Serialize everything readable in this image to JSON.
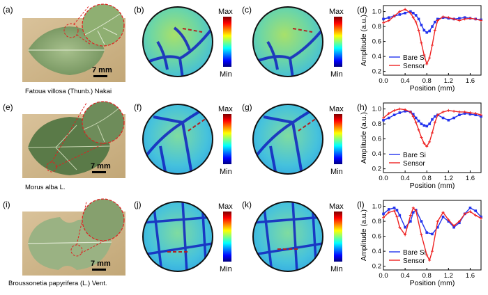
{
  "figure": {
    "rows": [
      {
        "photo": {
          "label": "(a)",
          "scale": "7 mm",
          "caption": "Fatoua villosa (Thunb.) Nakai"
        },
        "maps": [
          {
            "label": "(b)"
          },
          {
            "label": "(c)"
          }
        ],
        "plot": {
          "label": "(d)"
        }
      },
      {
        "photo": {
          "label": "(e)",
          "scale": "7 mm",
          "caption": "Morus alba L."
        },
        "maps": [
          {
            "label": "(f)"
          },
          {
            "label": "(g)"
          }
        ],
        "plot": {
          "label": "(h)"
        }
      },
      {
        "photo": {
          "label": "(i)",
          "scale": "7 mm",
          "caption": "Broussonetia papyrifera (L.) Vent."
        },
        "maps": [
          {
            "label": "(j)"
          },
          {
            "label": "(k)"
          }
        ],
        "plot": {
          "label": "(l)"
        }
      }
    ],
    "colorbar": {
      "max_label": "Max",
      "min_label": "Min"
    },
    "colors": {
      "bare_si": "#2233ee",
      "sensor": "#ee2222",
      "dashline": "#b02222"
    }
  },
  "chart_data": [
    {
      "type": "line",
      "xlabel": "Position (mm)",
      "ylabel": "Amplitude (a.u.)",
      "xlim": [
        0.0,
        1.8
      ],
      "ylim": [
        0.15,
        1.08
      ],
      "xticks": [
        "0.0",
        "0.4",
        "0.8",
        "1.2",
        "1.6"
      ],
      "yticks": [
        "0.2",
        "0.4",
        "0.6",
        "0.8",
        "1.0"
      ],
      "legend": "bottom-left",
      "series": [
        {
          "name": "Bare Si",
          "x": [
            0.0,
            0.1,
            0.2,
            0.3,
            0.4,
            0.5,
            0.55,
            0.6,
            0.65,
            0.7,
            0.75,
            0.8,
            0.85,
            0.9,
            0.95,
            1.0,
            1.1,
            1.2,
            1.3,
            1.4,
            1.5,
            1.6,
            1.7,
            1.8
          ],
          "y": [
            0.9,
            0.92,
            0.94,
            0.96,
            0.98,
            1.0,
            0.98,
            0.95,
            0.9,
            0.82,
            0.75,
            0.72,
            0.74,
            0.8,
            0.86,
            0.9,
            0.92,
            0.91,
            0.9,
            0.91,
            0.92,
            0.91,
            0.9,
            0.89
          ]
        },
        {
          "name": "Sensor",
          "x": [
            0.0,
            0.1,
            0.2,
            0.3,
            0.4,
            0.5,
            0.55,
            0.6,
            0.65,
            0.7,
            0.75,
            0.8,
            0.85,
            0.9,
            0.95,
            1.0,
            1.1,
            1.2,
            1.3,
            1.4,
            1.5,
            1.6,
            1.7,
            1.8
          ],
          "y": [
            0.85,
            0.88,
            0.94,
            1.0,
            1.03,
            0.98,
            0.92,
            0.86,
            0.75,
            0.58,
            0.42,
            0.3,
            0.38,
            0.55,
            0.75,
            0.88,
            0.93,
            0.92,
            0.9,
            0.88,
            0.9,
            0.91,
            0.9,
            0.88
          ]
        }
      ]
    },
    {
      "type": "line",
      "xlabel": "Position (mm)",
      "ylabel": "Amplitude (a.u.)",
      "xlim": [
        0.0,
        1.8
      ],
      "ylim": [
        0.15,
        1.08
      ],
      "xticks": [
        "0.0",
        "0.4",
        "0.8",
        "1.2",
        "1.6"
      ],
      "yticks": [
        "0.2",
        "0.4",
        "0.6",
        "0.8",
        "1.0"
      ],
      "legend": "bottom-left",
      "series": [
        {
          "name": "Bare Si",
          "x": [
            0.0,
            0.1,
            0.2,
            0.3,
            0.4,
            0.5,
            0.55,
            0.6,
            0.65,
            0.7,
            0.75,
            0.8,
            0.85,
            0.9,
            0.95,
            1.0,
            1.1,
            1.2,
            1.3,
            1.4,
            1.5,
            1.6,
            1.7,
            1.8
          ],
          "y": [
            0.85,
            0.88,
            0.92,
            0.95,
            0.97,
            0.96,
            0.93,
            0.88,
            0.84,
            0.8,
            0.78,
            0.77,
            0.8,
            0.86,
            0.9,
            0.92,
            0.88,
            0.85,
            0.88,
            0.92,
            0.94,
            0.93,
            0.92,
            0.9
          ]
        },
        {
          "name": "Sensor",
          "x": [
            0.0,
            0.1,
            0.2,
            0.3,
            0.4,
            0.5,
            0.55,
            0.6,
            0.65,
            0.7,
            0.75,
            0.8,
            0.85,
            0.9,
            0.95,
            1.0,
            1.1,
            1.2,
            1.3,
            1.4,
            1.5,
            1.6,
            1.7,
            1.8
          ],
          "y": [
            0.88,
            0.94,
            0.98,
            1.0,
            0.99,
            0.96,
            0.9,
            0.82,
            0.72,
            0.62,
            0.54,
            0.5,
            0.56,
            0.68,
            0.82,
            0.92,
            0.96,
            0.98,
            0.97,
            0.96,
            0.96,
            0.95,
            0.94,
            0.92
          ]
        }
      ]
    },
    {
      "type": "line",
      "xlabel": "Position (mm)",
      "ylabel": "Amplitude (a.u.)",
      "xlim": [
        0.0,
        1.8
      ],
      "ylim": [
        0.15,
        1.08
      ],
      "xticks": [
        "0.0",
        "0.4",
        "0.8",
        "1.2",
        "1.6"
      ],
      "yticks": [
        "0.2",
        "0.4",
        "0.6",
        "0.8",
        "1.0"
      ],
      "legend": "bottom-left",
      "series": [
        {
          "name": "Bare Si",
          "x": [
            0.0,
            0.1,
            0.2,
            0.25,
            0.3,
            0.4,
            0.5,
            0.55,
            0.6,
            0.7,
            0.8,
            0.9,
            1.0,
            1.1,
            1.2,
            1.3,
            1.4,
            1.5,
            1.6,
            1.7,
            1.8
          ],
          "y": [
            0.9,
            0.96,
            0.98,
            0.95,
            0.88,
            0.72,
            0.8,
            0.92,
            0.95,
            0.8,
            0.65,
            0.63,
            0.72,
            0.86,
            0.8,
            0.72,
            0.78,
            0.9,
            0.98,
            0.94,
            0.86
          ]
        },
        {
          "name": "Sensor",
          "x": [
            0.0,
            0.1,
            0.2,
            0.25,
            0.3,
            0.4,
            0.5,
            0.55,
            0.6,
            0.7,
            0.8,
            0.85,
            0.9,
            1.0,
            1.1,
            1.2,
            1.3,
            1.4,
            1.5,
            1.6,
            1.7,
            1.8
          ],
          "y": [
            0.85,
            0.92,
            0.94,
            0.86,
            0.72,
            0.62,
            0.88,
            0.98,
            0.94,
            0.62,
            0.35,
            0.28,
            0.4,
            0.8,
            0.92,
            0.82,
            0.74,
            0.8,
            0.9,
            0.93,
            0.88,
            0.84
          ]
        }
      ]
    }
  ]
}
